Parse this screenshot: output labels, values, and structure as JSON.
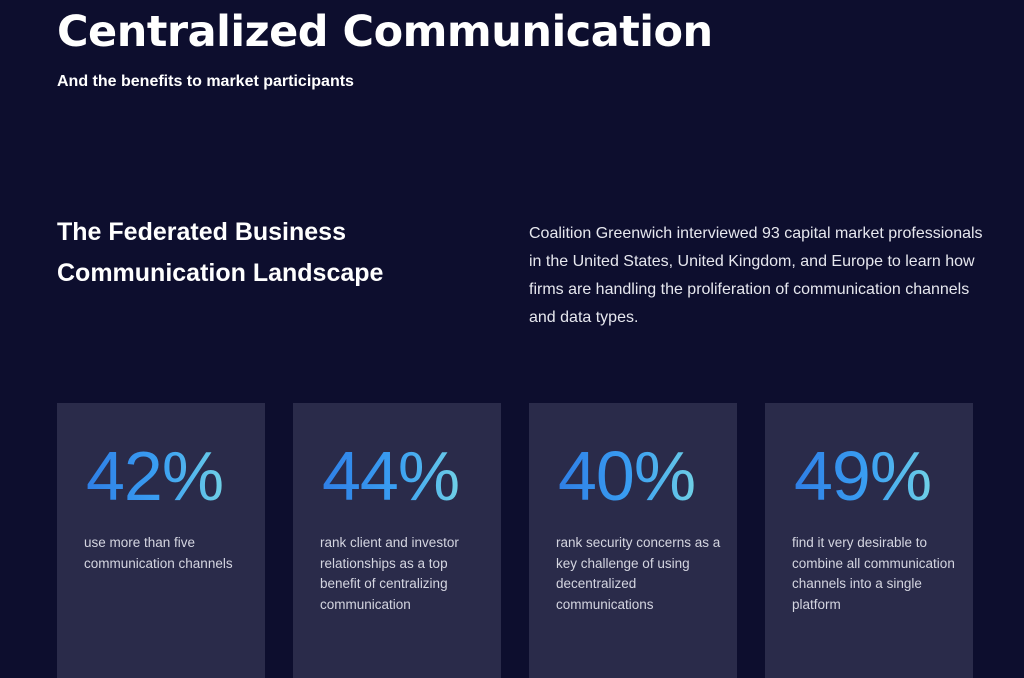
{
  "header": {
    "title": "Centralized Communication",
    "subtitle": "And the benefits to market participants"
  },
  "section": {
    "heading": "The Federated Business Communication Landscape",
    "intro": "Coalition Greenwich interviewed 93 capital market professionals in the United States, United Kingdom, and Europe to learn how firms are handling the proliferation of communication channels and data types."
  },
  "stats": [
    {
      "value": "42%",
      "description": "use more than five communication channels"
    },
    {
      "value": "44%",
      "description": "rank client and investor relationships as a top benefit of centralizing communication"
    },
    {
      "value": "40%",
      "description": "rank security concerns as a key challenge of using decentralized communications"
    },
    {
      "value": "49%",
      "description": "find it very desirable to combine all communication channels into a single platform"
    }
  ],
  "colors": {
    "background": "#0d0e2e",
    "card": "#2a2b4a",
    "accent_start": "#2f7fe6",
    "accent_end": "#6fd0e6"
  }
}
